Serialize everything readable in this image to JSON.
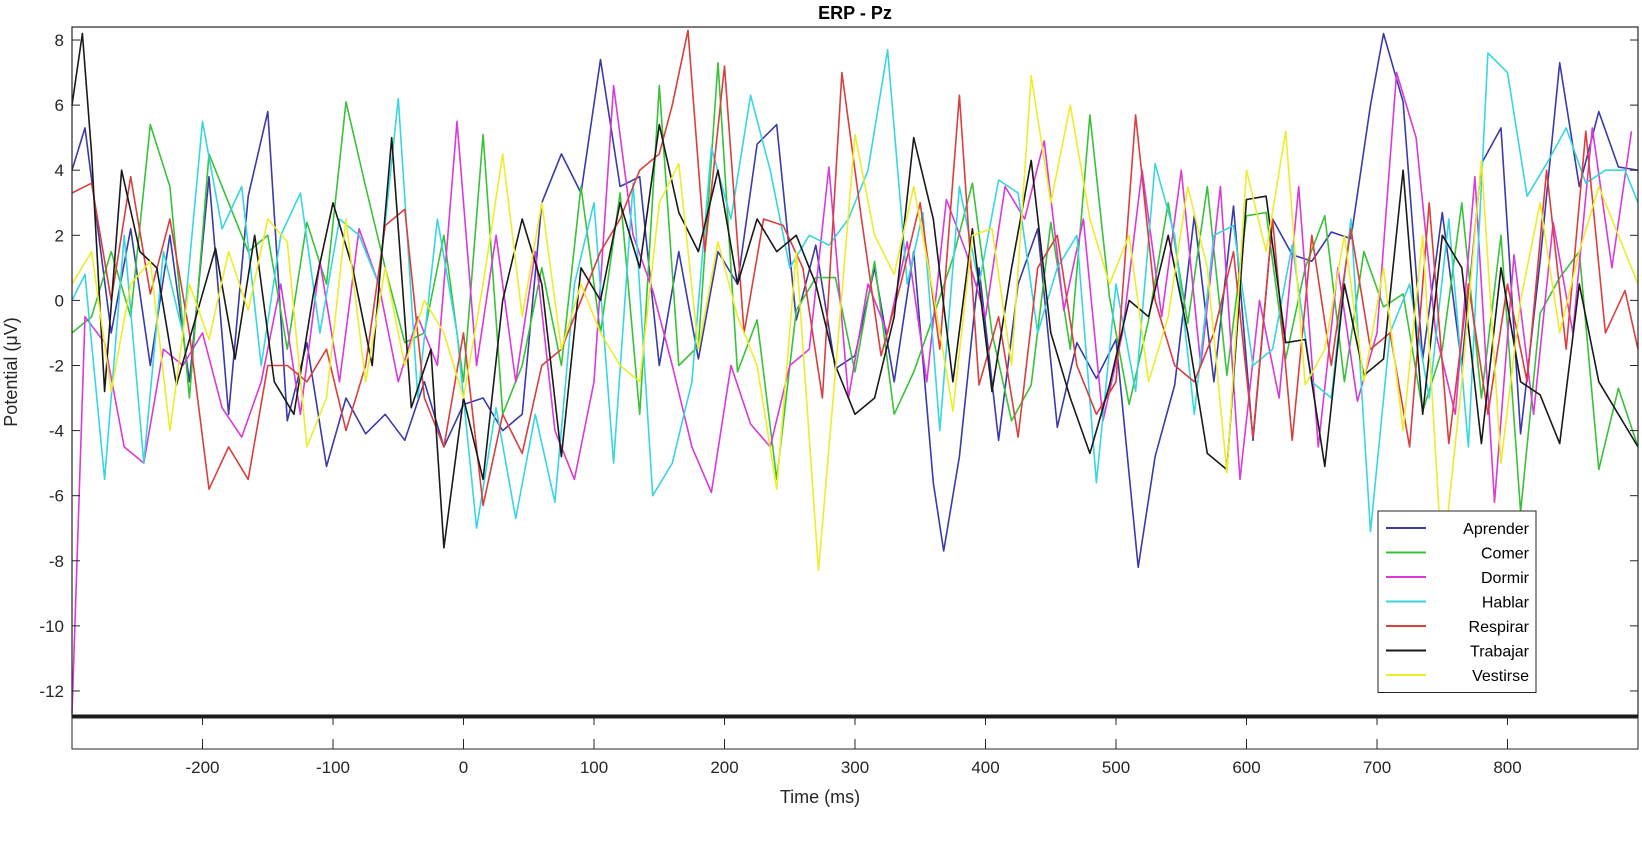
{
  "chart_data": {
    "type": "line",
    "title": "ERP - Pz",
    "xlabel": "Time (ms)",
    "ylabel": "Potential (μV)",
    "xlim": [
      -300,
      900
    ],
    "ylim": [
      -12.8,
      8.4
    ],
    "xticks": [
      -200,
      -100,
      0,
      100,
      200,
      300,
      400,
      500,
      600,
      700,
      800
    ],
    "xtick_labels": [
      "-200",
      "-100",
      "0",
      "100",
      "200",
      "300",
      "400",
      "500",
      "600",
      "700",
      "800"
    ],
    "yticks": [
      8,
      6,
      4,
      2,
      0,
      -2,
      -4,
      -6,
      -8,
      -10,
      -12
    ],
    "ytick_labels": [
      "8",
      "6",
      "4",
      "2",
      "0",
      "-2",
      "-4",
      "-6",
      "-8",
      "-10",
      "-12"
    ],
    "grid": false,
    "legend_position": "bottom-right",
    "series": [
      {
        "name": "Aprender",
        "color": "#3b3ba8",
        "x": [
          -300,
          -290,
          -270,
          -255,
          -240,
          -225,
          -210,
          -195,
          -180,
          -165,
          -150,
          -135,
          -120,
          -105,
          -90,
          -75,
          -60,
          -45,
          -30,
          -15,
          0,
          15,
          30,
          45,
          60,
          75,
          90,
          105,
          120,
          135,
          150,
          165,
          180,
          195,
          210,
          225,
          240,
          255,
          270,
          285,
          300,
          315,
          330,
          345,
          360,
          368,
          380,
          395,
          410,
          425,
          440,
          455,
          470,
          485,
          500,
          517,
          530,
          545,
          560,
          575,
          590,
          605,
          620,
          635,
          650,
          665,
          680,
          695,
          705,
          720,
          735,
          750,
          765,
          780,
          795,
          810,
          825,
          840,
          855,
          870,
          885,
          900
        ],
        "y": [
          4,
          5.3,
          -1,
          2.2,
          -2,
          2,
          -2.5,
          3.8,
          -3.5,
          3.2,
          5.8,
          -3.7,
          -1.3,
          -5.1,
          -3,
          -4.1,
          -3.5,
          -4.3,
          -2.5,
          -4.5,
          -3.2,
          -3,
          -4,
          -3.5,
          3,
          4.5,
          3.3,
          7.4,
          3.5,
          3.8,
          -2,
          1.5,
          -1.8,
          1.5,
          0.5,
          4.8,
          5.4,
          -0.6,
          1.7,
          -2.1,
          -1.7,
          1,
          -2.5,
          1.5,
          -5.6,
          -7.7,
          -4.8,
          1,
          -4.3,
          0.5,
          2.2,
          -3.9,
          -1.3,
          -2.4,
          -1.2,
          -8.2,
          -4.8,
          -2.6,
          2.6,
          -2.5,
          2.9,
          -4.3,
          2.5,
          1.4,
          1.2,
          2.1,
          1.9,
          6,
          8.2,
          6.1,
          -1.8,
          2.7,
          -2,
          4.2,
          5.3,
          -4.1,
          1.2,
          7.3,
          3.5,
          5.8,
          4.1,
          4
        ]
      },
      {
        "name": "Comer",
        "color": "#39c239",
        "x": [
          -300,
          -285,
          -270,
          -255,
          -240,
          -225,
          -210,
          -195,
          -180,
          -165,
          -150,
          -135,
          -120,
          -105,
          -90,
          -75,
          -60,
          -45,
          -30,
          -15,
          0,
          15,
          30,
          45,
          60,
          75,
          90,
          105,
          120,
          135,
          150,
          165,
          180,
          195,
          210,
          225,
          240,
          255,
          270,
          285,
          300,
          315,
          330,
          345,
          360,
          375,
          390,
          405,
          420,
          435,
          450,
          465,
          480,
          495,
          510,
          525,
          540,
          555,
          570,
          585,
          600,
          615,
          630,
          645,
          660,
          675,
          690,
          705,
          720,
          735,
          750,
          765,
          780,
          795,
          810,
          825,
          840,
          855,
          870,
          885,
          900
        ],
        "y": [
          -1,
          -0.5,
          1.5,
          -0.5,
          5.4,
          3.5,
          -3,
          4.5,
          3,
          1.5,
          2,
          -1.5,
          2.4,
          0.5,
          6.1,
          3.5,
          1,
          -1.3,
          -1,
          2,
          -2.5,
          5.1,
          -3.5,
          -2,
          1,
          -2,
          3.5,
          -1,
          3.3,
          -3.5,
          6.6,
          -2,
          -1.4,
          7.3,
          -2.2,
          -0.6,
          -5.5,
          -0.3,
          0.7,
          0.7,
          -2.2,
          1.2,
          -3.5,
          -2.2,
          -0.5,
          1.3,
          3.6,
          -1,
          -3.7,
          -2.6,
          2.4,
          -1.5,
          5.7,
          0.1,
          -3.2,
          -0.6,
          3,
          -0.7,
          3.5,
          -2.3,
          2.6,
          2.7,
          -1.8,
          1,
          2.6,
          -2.5,
          1.5,
          -0.2,
          0.2,
          -3.4,
          -1.5,
          3,
          -3,
          2,
          -6.5,
          -0.4,
          0.7,
          1.5,
          -5.2,
          -2.7,
          -4.5
        ]
      },
      {
        "name": "Dormir",
        "color": "#d93ad9",
        "x": [
          -300,
          -290,
          -275,
          -260,
          -245,
          -230,
          -215,
          -200,
          -185,
          -170,
          -155,
          -140,
          -125,
          -110,
          -95,
          -80,
          -65,
          -50,
          -35,
          -20,
          -5,
          10,
          25,
          40,
          55,
          70,
          85,
          100,
          115,
          130,
          145,
          160,
          175,
          190,
          205,
          220,
          235,
          250,
          265,
          280,
          295,
          310,
          325,
          340,
          355,
          370,
          385,
          400,
          415,
          430,
          445,
          460,
          475,
          490,
          505,
          520,
          535,
          550,
          565,
          580,
          595,
          610,
          625,
          640,
          655,
          670,
          685,
          700,
          715,
          730,
          745,
          760,
          775,
          790,
          805,
          820,
          835,
          850,
          865,
          880,
          895
        ],
        "y": [
          -12.7,
          -0.5,
          -1.3,
          -4.5,
          -5,
          -1.5,
          -2,
          -1,
          -3.3,
          -4.2,
          -2.5,
          0.5,
          -3.5,
          1.2,
          -2.5,
          2.2,
          0.5,
          -2.5,
          -0.5,
          -2,
          5.5,
          -2,
          2,
          -2.5,
          1.5,
          -4,
          -5.5,
          -2.5,
          6.6,
          2,
          0.3,
          -2,
          -4.5,
          -5.9,
          -2,
          -3.8,
          -4.5,
          -2,
          -1.5,
          4.1,
          -3,
          0.5,
          -1,
          1.8,
          -2.5,
          3.1,
          1.5,
          -0.5,
          3.5,
          2.5,
          4.9,
          -0.3,
          2.5,
          -3.7,
          -1,
          4,
          -0.5,
          4,
          -2,
          3.5,
          -5.5,
          0,
          -3,
          3.5,
          -4.5,
          1,
          -3.1,
          -1,
          7,
          5,
          -1,
          -3.5,
          3.8,
          -6.2,
          1.4,
          -3.5,
          2.4,
          -1,
          5.3,
          1,
          5.2
        ]
      },
      {
        "name": "Hablar",
        "color": "#38d6e0",
        "x": [
          -300,
          -290,
          -275,
          -260,
          -245,
          -230,
          -215,
          -200,
          -185,
          -170,
          -155,
          -140,
          -125,
          -110,
          -95,
          -80,
          -65,
          -50,
          -35,
          -20,
          -5,
          10,
          25,
          40,
          55,
          70,
          85,
          100,
          115,
          130,
          145,
          160,
          175,
          190,
          205,
          220,
          235,
          250,
          265,
          280,
          295,
          310,
          325,
          340,
          352,
          365,
          380,
          395,
          410,
          425,
          440,
          455,
          470,
          485,
          500,
          515,
          530,
          545,
          560,
          575,
          590,
          605,
          620,
          635,
          650,
          665,
          680,
          695,
          710,
          725,
          740,
          755,
          770,
          785,
          800,
          815,
          830,
          845,
          860,
          875,
          890,
          900
        ],
        "y": [
          0,
          0.8,
          -5.5,
          2,
          -5,
          1.5,
          -1,
          5.5,
          2.2,
          3.5,
          -2,
          2,
          3.3,
          -1,
          2.5,
          2,
          0.5,
          6.2,
          -3,
          2.5,
          -1,
          -7,
          -3.3,
          -6.7,
          -3.5,
          -6.2,
          0.5,
          3,
          -5,
          3.6,
          -6,
          -5,
          -2.5,
          4.7,
          2.5,
          6.3,
          4,
          1,
          2,
          1.7,
          2.5,
          4,
          7.7,
          0.5,
          2.7,
          -4,
          3.5,
          0.5,
          3.7,
          3.3,
          -1,
          1,
          2,
          -5.6,
          0.5,
          -2.8,
          4.2,
          2,
          -3.5,
          2,
          2.3,
          -2,
          -1.5,
          1.7,
          -2.5,
          -3,
          2.5,
          -7.1,
          -1,
          0.5,
          -3,
          2.5,
          -4.5,
          7.6,
          7,
          3.2,
          4.2,
          5.3,
          3.6,
          4,
          4,
          3
        ]
      },
      {
        "name": "Respirar",
        "color": "#d93f3f",
        "x": [
          -300,
          -285,
          -270,
          -255,
          -240,
          -225,
          -210,
          -195,
          -180,
          -165,
          -150,
          -135,
          -120,
          -105,
          -90,
          -75,
          -60,
          -45,
          -30,
          -15,
          0,
          15,
          30,
          45,
          60,
          75,
          90,
          105,
          120,
          135,
          150,
          160,
          172,
          185,
          200,
          215,
          230,
          245,
          260,
          275,
          290,
          305,
          320,
          335,
          350,
          365,
          380,
          395,
          410,
          425,
          440,
          455,
          470,
          485,
          500,
          515,
          530,
          545,
          560,
          575,
          590,
          605,
          620,
          635,
          650,
          665,
          680,
          695,
          710,
          725,
          740,
          755,
          770,
          785,
          800,
          815,
          830,
          845,
          860,
          875,
          890,
          900
        ],
        "y": [
          3.3,
          3.6,
          0,
          3.8,
          0.2,
          2.5,
          -1,
          -5.8,
          -4.5,
          -5.5,
          -2,
          -2,
          -2.5,
          -1.5,
          -4,
          -2,
          2.3,
          2.8,
          -3,
          -4.5,
          -1,
          -6.3,
          -3.5,
          -4.7,
          -2,
          -1.5,
          0,
          1.5,
          2.5,
          4,
          4.5,
          6,
          8.3,
          1.5,
          7.2,
          -1,
          2.5,
          2.3,
          1,
          -3,
          7,
          2.5,
          -1.7,
          0.5,
          3,
          -1.5,
          6.3,
          -2.6,
          -0.5,
          -4.2,
          1,
          2,
          -2,
          -3.5,
          -2.5,
          5.7,
          0,
          -2,
          -2.5,
          -1,
          1.5,
          -4.2,
          2.5,
          -4.3,
          2,
          -2,
          2.2,
          -1.5,
          -1,
          -4.5,
          3,
          -4.4,
          0.5,
          -3.5,
          0.5,
          -2.5,
          4,
          -1.5,
          5.2,
          -1,
          0.3,
          -1.5
        ]
      },
      {
        "name": "Trabajar",
        "color": "#1a1a1a",
        "x": [
          -300,
          -292,
          -285,
          -275,
          -262,
          -248,
          -235,
          -220,
          -205,
          -190,
          -175,
          -160,
          -145,
          -130,
          -115,
          -100,
          -85,
          -70,
          -55,
          -40,
          -25,
          -15,
          0,
          15,
          30,
          45,
          60,
          75,
          90,
          105,
          120,
          135,
          150,
          165,
          180,
          195,
          210,
          225,
          240,
          255,
          270,
          285,
          300,
          315,
          330,
          345,
          360,
          375,
          390,
          405,
          420,
          435,
          450,
          465,
          480,
          495,
          510,
          525,
          540,
          555,
          570,
          585,
          600,
          615,
          630,
          645,
          660,
          675,
          690,
          705,
          720,
          735,
          750,
          765,
          780,
          795,
          810,
          825,
          840,
          855,
          870,
          885,
          900
        ],
        "y": [
          6,
          8.2,
          4.5,
          -2.8,
          4,
          1.5,
          1,
          -2.6,
          -0.5,
          1.6,
          -1.8,
          2,
          -2.5,
          -3.5,
          0.2,
          3,
          1,
          -2,
          5,
          -3.3,
          -1.5,
          -7.6,
          -3,
          -5.5,
          0,
          2.5,
          0.5,
          -4.8,
          1,
          0,
          3,
          1,
          5.4,
          2.7,
          1.5,
          4,
          0.5,
          2.5,
          1.5,
          2,
          0.5,
          -2,
          -3.5,
          -3,
          -0.5,
          5,
          2.5,
          -2.5,
          2.2,
          -2.8,
          1,
          4.3,
          -1,
          -3,
          -4.7,
          -2.6,
          0,
          -0.5,
          2,
          -1,
          -4.7,
          -5.2,
          3.1,
          3.2,
          -1.3,
          -1.2,
          -5.1,
          0.5,
          -2.3,
          -1.8,
          4,
          -3.5,
          2,
          1,
          -4.4,
          1,
          -2.5,
          -2.9,
          -4.4,
          0.5,
          -2.5,
          -3.5,
          -4.5
        ]
      },
      {
        "name": "Vestirse",
        "color": "#eded2a",
        "x": [
          -300,
          -285,
          -270,
          -255,
          -240,
          -225,
          -210,
          -195,
          -180,
          -165,
          -150,
          -135,
          -120,
          -105,
          -90,
          -75,
          -60,
          -45,
          -30,
          -15,
          0,
          15,
          30,
          45,
          60,
          75,
          90,
          105,
          120,
          135,
          150,
          165,
          180,
          195,
          210,
          225,
          240,
          255,
          272,
          285,
          300,
          315,
          330,
          345,
          360,
          375,
          390,
          405,
          420,
          435,
          450,
          465,
          480,
          495,
          510,
          525,
          540,
          555,
          570,
          585,
          600,
          615,
          630,
          645,
          660,
          675,
          690,
          705,
          720,
          735,
          750,
          765,
          780,
          795,
          810,
          825,
          840,
          855,
          870,
          885,
          900
        ],
        "y": [
          0.5,
          1.5,
          -2.8,
          0.5,
          1.2,
          -4,
          0.5,
          -1.2,
          1.5,
          -0.3,
          2.5,
          1.8,
          -4.5,
          -3,
          2.5,
          -2.5,
          1,
          -2,
          0,
          -1,
          -3,
          0.5,
          4.5,
          -0.5,
          3,
          -1.5,
          0.5,
          -1,
          -2,
          -2.5,
          3,
          4.2,
          -1.5,
          1.8,
          -0.5,
          -2,
          -5.8,
          1.5,
          -8.3,
          -2.2,
          5.1,
          2,
          0.8,
          3.5,
          0.2,
          -3.4,
          2,
          2.2,
          -2,
          6.9,
          3,
          6,
          2.5,
          0.5,
          2,
          -2.5,
          -0.5,
          3.5,
          1,
          -5.3,
          4,
          1.5,
          5.2,
          -2.6,
          -1.5,
          2,
          -2.5,
          1,
          -4,
          2,
          -8.2,
          -2.5,
          4.3,
          -5,
          0,
          3,
          -1,
          1.5,
          3.5,
          2,
          0.5
        ]
      }
    ]
  }
}
